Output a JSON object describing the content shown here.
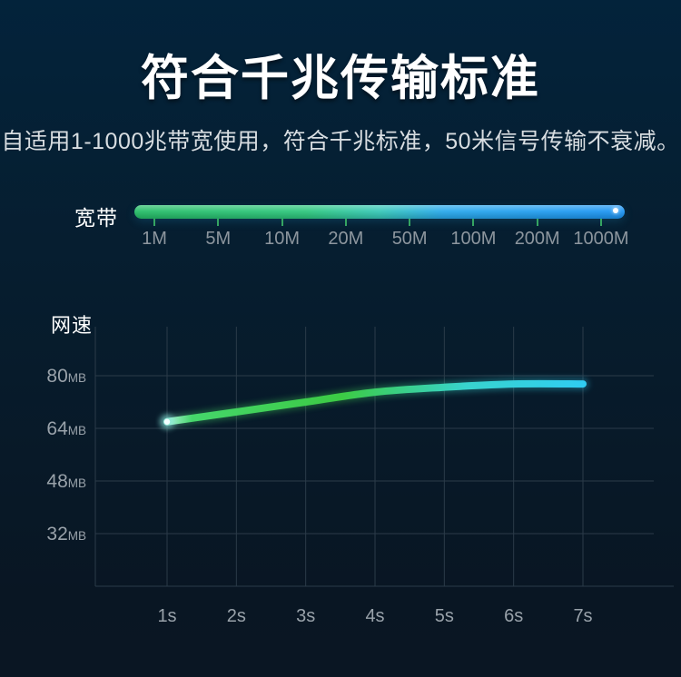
{
  "page": {
    "title": "符合千兆传输标准",
    "subtitle": "自适用1-1000兆带宽使用，符合千兆标准，50米信号传输不衰减。"
  },
  "bandwidth": {
    "label": "宽带",
    "ticks": [
      "1M",
      "5M",
      "10M",
      "20M",
      "50M",
      "100M",
      "200M",
      "1000M"
    ],
    "bar_gradient": [
      "#27bd68",
      "#2fc77e",
      "#38c8b8",
      "#2aa9ec",
      "#1e95f3"
    ],
    "tick_mark_color": "#35a562",
    "tick_label_color": "#8d969e",
    "end_dot_color": "#ffffff"
  },
  "chart_data": {
    "type": "line",
    "title": "网速",
    "x_labels": [
      "1s",
      "2s",
      "3s",
      "4s",
      "5s",
      "6s",
      "7s"
    ],
    "values": [
      66,
      69,
      72,
      75,
      76.5,
      77.5,
      77.5
    ],
    "unit": "MB",
    "y_ticks": [
      80,
      64,
      48,
      32
    ],
    "ylim": [
      16,
      96
    ],
    "grid": true,
    "grid_color": "#2b3b49",
    "line_gradient": [
      "#aef3d8",
      "#45d66b",
      "#3ccb44",
      "#38d3cf",
      "#30cdf2"
    ],
    "start_dot_color": "#f2ffff"
  }
}
